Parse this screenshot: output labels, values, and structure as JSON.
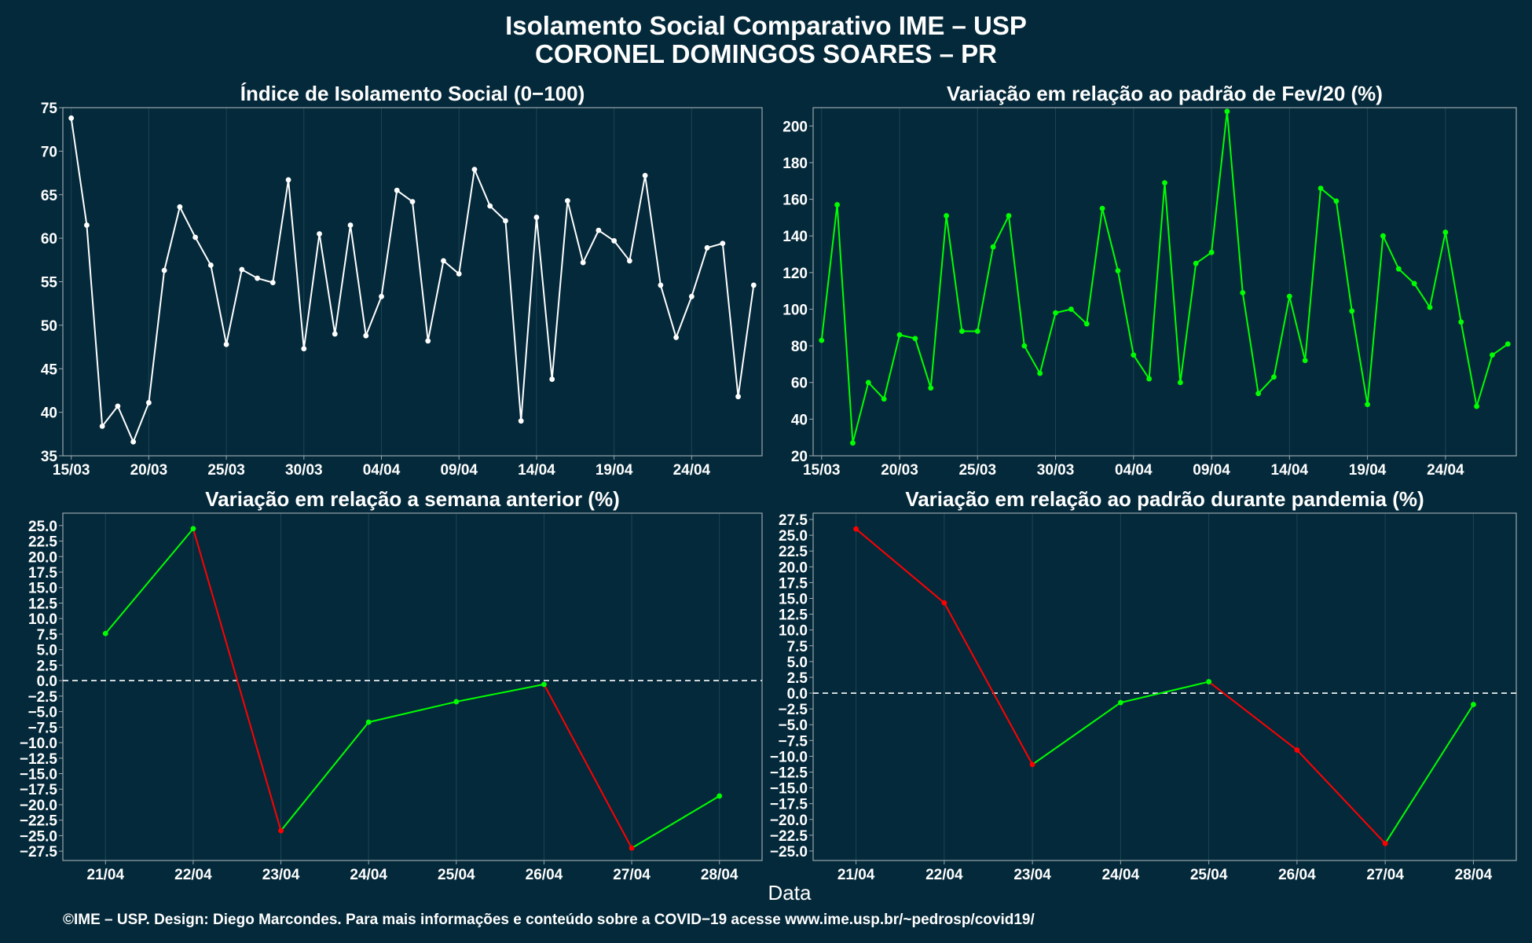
{
  "title_line1": "Isolamento Social Comparativo IME – USP",
  "title_line2": "CORONEL DOMINGOS SOARES – PR",
  "xlabel": "Data",
  "footer": "©IME – USP. Design: Diego Marcondes. Para mais informações e conteúdo sobre a COVID−19 acesse www.ime.usp.br/~pedrosp/covid19/",
  "colors": {
    "background": "#04293a",
    "white_line": "#ffffff",
    "green_line": "#00ff00",
    "red_line": "#ff0000",
    "grid": "#1c4655",
    "frame": "#9aa7ad"
  },
  "chart_data": [
    {
      "id": "isolamento",
      "type": "line",
      "title": "Índice de Isolamento Social (0−100)",
      "x": [
        "15/03",
        "16/03",
        "17/03",
        "18/03",
        "19/03",
        "20/03",
        "21/03",
        "22/03",
        "23/03",
        "24/03",
        "25/03",
        "26/03",
        "27/03",
        "28/03",
        "29/03",
        "30/03",
        "31/03",
        "01/04",
        "02/04",
        "03/04",
        "04/04",
        "05/04",
        "06/04",
        "07/04",
        "08/04",
        "09/04",
        "10/04",
        "11/04",
        "12/04",
        "13/04",
        "14/04",
        "15/04",
        "16/04",
        "17/04",
        "18/04",
        "19/04",
        "20/04",
        "21/04",
        "22/04",
        "23/04",
        "24/04",
        "25/04",
        "26/04",
        "27/04",
        "28/04"
      ],
      "values": [
        73.8,
        61.5,
        38.4,
        40.7,
        36.6,
        41.1,
        56.3,
        63.6,
        60.1,
        56.9,
        47.8,
        56.4,
        55.4,
        54.9,
        66.7,
        47.3,
        60.5,
        49.0,
        61.5,
        48.8,
        53.3,
        65.5,
        64.2,
        48.2,
        57.4,
        55.9,
        67.9,
        63.7,
        62.0,
        39.0,
        62.4,
        43.8,
        64.3,
        57.2,
        60.9,
        59.7,
        57.4,
        67.2,
        54.6,
        48.6,
        53.3,
        58.9,
        59.4,
        41.8,
        54.6
      ],
      "x_ticks": [
        "15/03",
        "20/03",
        "25/03",
        "30/03",
        "04/04",
        "09/04",
        "14/04",
        "19/04",
        "24/04"
      ],
      "ylim": [
        35,
        75
      ],
      "y_ticks": [
        35,
        40,
        45,
        50,
        55,
        60,
        65,
        70,
        75
      ],
      "color": "white",
      "grid": true
    },
    {
      "id": "fev20",
      "type": "line",
      "title": "Variação em relação ao padrão de Fev/20 (%)",
      "x": [
        "15/03",
        "16/03",
        "17/03",
        "18/03",
        "19/03",
        "20/03",
        "21/03",
        "22/03",
        "23/03",
        "24/03",
        "25/03",
        "26/03",
        "27/03",
        "28/03",
        "29/03",
        "30/03",
        "31/03",
        "01/04",
        "02/04",
        "03/04",
        "04/04",
        "05/04",
        "06/04",
        "07/04",
        "08/04",
        "09/04",
        "10/04",
        "11/04",
        "12/04",
        "13/04",
        "14/04",
        "15/04",
        "16/04",
        "17/04",
        "18/04",
        "19/04",
        "20/04",
        "21/04",
        "22/04",
        "23/04",
        "24/04",
        "25/04",
        "26/04",
        "27/04",
        "28/04"
      ],
      "values": [
        83,
        157,
        27,
        60,
        51,
        86,
        84,
        57,
        151,
        88,
        88,
        134,
        151,
        80,
        65,
        98,
        100,
        92,
        155,
        121,
        75,
        62,
        169,
        60,
        125,
        131,
        208,
        109,
        54,
        63,
        107,
        72,
        166,
        159,
        99,
        48,
        140,
        122,
        114,
        101,
        142,
        93,
        47,
        75,
        81
      ],
      "x_ticks": [
        "15/03",
        "20/03",
        "25/03",
        "30/03",
        "04/04",
        "09/04",
        "14/04",
        "19/04",
        "24/04"
      ],
      "ylim": [
        20,
        210
      ],
      "y_ticks": [
        20,
        40,
        60,
        80,
        100,
        120,
        140,
        160,
        180,
        200
      ],
      "color": "green",
      "grid": true
    },
    {
      "id": "semana",
      "type": "line",
      "title": "Variação em relação a semana anterior (%)",
      "x": [
        "21/04",
        "22/04",
        "23/04",
        "24/04",
        "25/04",
        "26/04",
        "27/04",
        "28/04"
      ],
      "values": [
        7.6,
        24.5,
        -24.2,
        -6.7,
        -3.4,
        -0.6,
        -27.0,
        -18.6
      ],
      "ylim": [
        -29,
        27
      ],
      "y_ticks": [
        -27.5,
        -25,
        -22.5,
        -20,
        -17.5,
        -15,
        -12.5,
        -10,
        -7.5,
        -5,
        -2.5,
        0,
        2.5,
        5,
        7.5,
        10,
        12.5,
        15,
        17.5,
        20,
        22.5,
        25
      ],
      "reference_line": 0,
      "color_rule": "green when rising, red when falling",
      "grid": true
    },
    {
      "id": "pandemia",
      "type": "line",
      "title": "Variação em relação ao padrão durante pandemia (%)",
      "x": [
        "21/04",
        "22/04",
        "23/04",
        "24/04",
        "25/04",
        "26/04",
        "27/04",
        "28/04"
      ],
      "values": [
        26.0,
        14.3,
        -11.3,
        -1.5,
        1.8,
        -9.0,
        -23.8,
        -1.8
      ],
      "ylim": [
        -26.5,
        28.5
      ],
      "y_ticks": [
        -25,
        -22.5,
        -20,
        -17.5,
        -15,
        -12.5,
        -10,
        -7.5,
        -5,
        -2.5,
        0,
        2.5,
        5,
        7.5,
        10,
        12.5,
        15,
        17.5,
        20,
        22.5,
        25,
        27.5
      ],
      "reference_line": 0,
      "color_rule": "green when rising, red when falling",
      "grid": true
    }
  ]
}
